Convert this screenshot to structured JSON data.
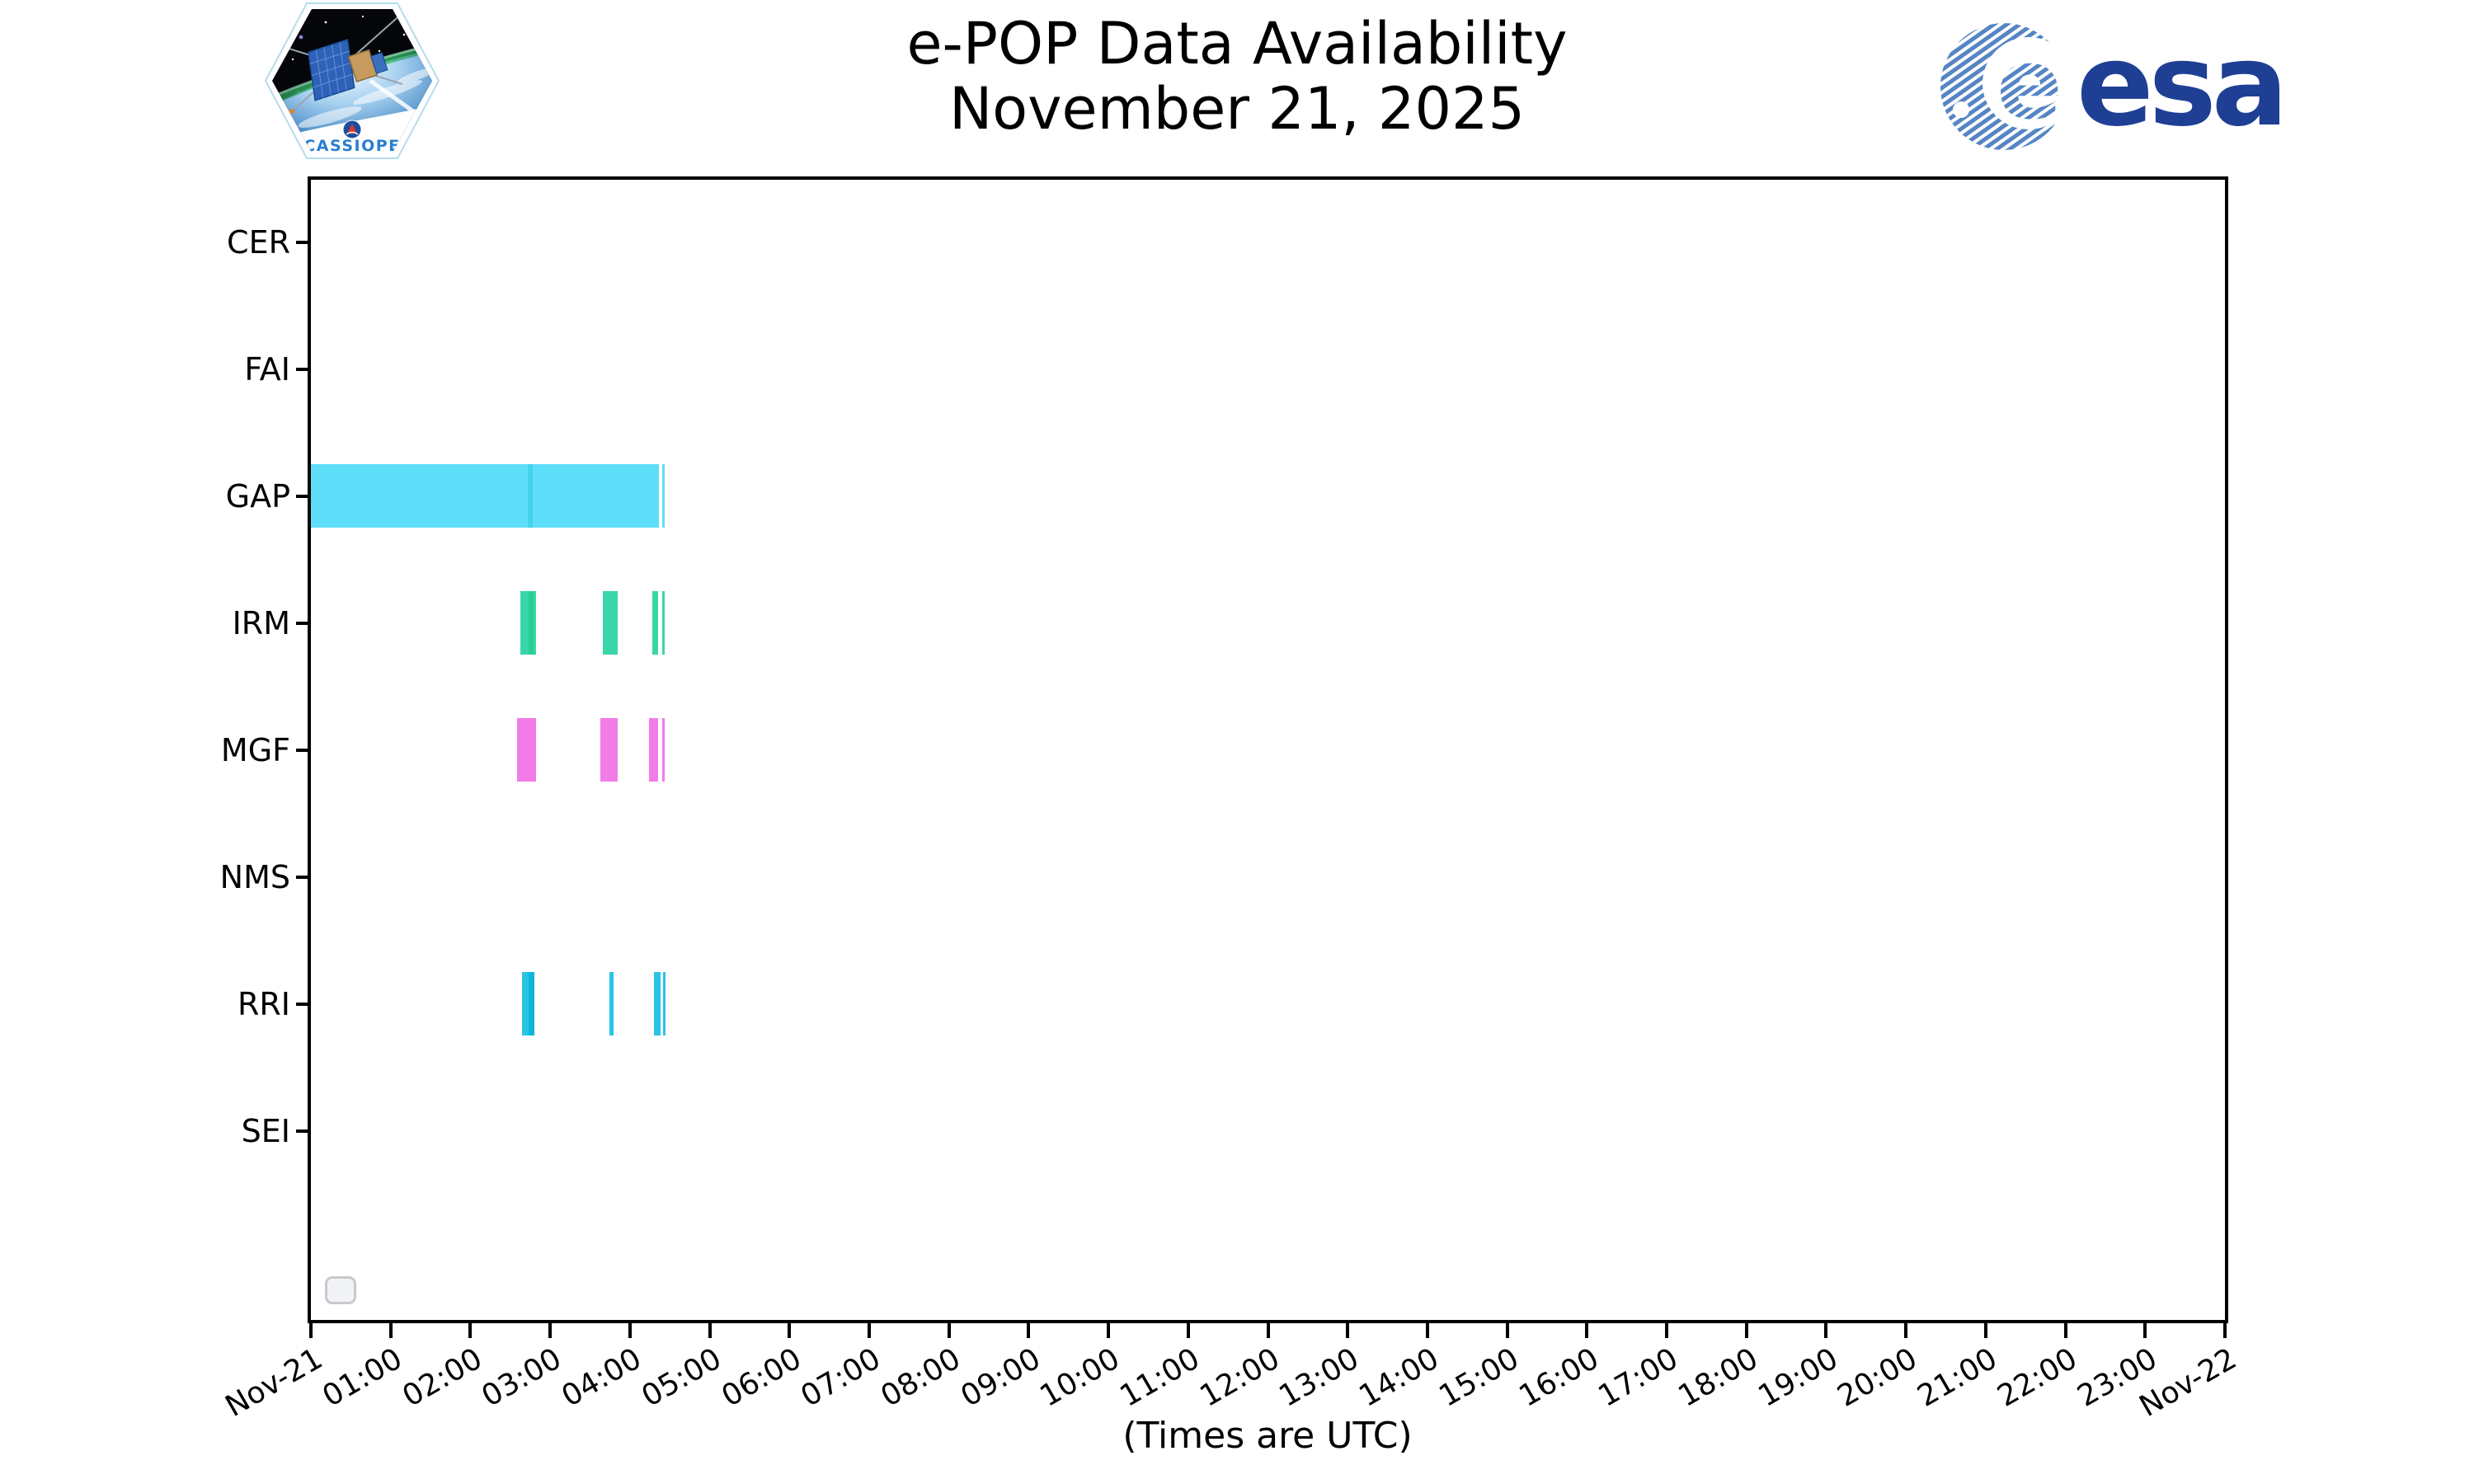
{
  "figure": {
    "cassiope_patch_text": "CASSIOPE",
    "esa_wordmark": "esa"
  },
  "chart_data": {
    "type": "availability-gantt",
    "title": "e-POP Data Availability",
    "subtitle": "November 21, 2025",
    "xlabel": "(Times are UTC)",
    "x_axis": {
      "start": "Nov-21 00:00 UTC",
      "end": "Nov-22 00:00 UTC",
      "hours_span": 24,
      "tick_interval_hours": 1,
      "tick_labels": [
        "Nov-21",
        "01:00",
        "02:00",
        "03:00",
        "04:00",
        "05:00",
        "06:00",
        "07:00",
        "08:00",
        "09:00",
        "10:00",
        "11:00",
        "12:00",
        "13:00",
        "14:00",
        "15:00",
        "16:00",
        "17:00",
        "18:00",
        "19:00",
        "20:00",
        "21:00",
        "22:00",
        "23:00",
        "Nov-22"
      ]
    },
    "instruments": [
      "CER",
      "FAI",
      "GAP",
      "IRM",
      "MGF",
      "NMS",
      "RRI",
      "SEI"
    ],
    "series": [
      {
        "instrument": "CER",
        "segments": []
      },
      {
        "instrument": "FAI",
        "segments": []
      },
      {
        "instrument": "GAP",
        "color": "#5edef8",
        "overlap_color": "#43d3ef",
        "segments": [
          {
            "start": "00:00",
            "end": "04:22",
            "start_h": 0.0,
            "end_h": 4.36
          },
          {
            "start": "02:43",
            "end": "02:47",
            "start_h": 2.72,
            "end_h": 2.78,
            "overlap": true
          },
          {
            "start": "04:25",
            "end": "04:26",
            "start_h": 4.41,
            "end_h": 4.44
          }
        ]
      },
      {
        "instrument": "IRM",
        "color": "#3bd6a7",
        "overlap_color": "#27ce99",
        "segments": [
          {
            "start": "02:38",
            "end": "02:49",
            "start_h": 2.63,
            "end_h": 2.82
          },
          {
            "start": "02:44",
            "end": "02:47",
            "start_h": 2.73,
            "end_h": 2.79,
            "overlap": true
          },
          {
            "start": "03:40",
            "end": "03:51",
            "start_h": 3.66,
            "end_h": 3.85
          },
          {
            "start": "04:17",
            "end": "04:21",
            "start_h": 4.28,
            "end_h": 4.35
          },
          {
            "start": "04:25",
            "end": "04:26",
            "start_h": 4.41,
            "end_h": 4.43
          }
        ]
      },
      {
        "instrument": "MGF",
        "color": "#f27ce8",
        "segments": [
          {
            "start": "02:35",
            "end": "02:49",
            "start_h": 2.59,
            "end_h": 2.82
          },
          {
            "start": "03:38",
            "end": "03:51",
            "start_h": 3.63,
            "end_h": 3.85
          },
          {
            "start": "04:14",
            "end": "04:21",
            "start_h": 4.24,
            "end_h": 4.35
          },
          {
            "start": "04:25",
            "end": "04:26",
            "start_h": 4.41,
            "end_h": 4.43
          }
        ]
      },
      {
        "instrument": "NMS",
        "segments": []
      },
      {
        "instrument": "RRI",
        "color": "#29c3e6",
        "overlap_color": "#0fb6dc",
        "segments": [
          {
            "start": "02:39",
            "end": "02:48",
            "start_h": 2.65,
            "end_h": 2.8
          },
          {
            "start": "02:44",
            "end": "02:48",
            "start_h": 2.73,
            "end_h": 2.8,
            "overlap": true
          },
          {
            "start": "03:44",
            "end": "03:47",
            "start_h": 3.74,
            "end_h": 3.79
          },
          {
            "start": "04:18",
            "end": "04:23",
            "start_h": 4.3,
            "end_h": 4.38
          },
          {
            "start": "04:25",
            "end": "04:26",
            "start_h": 4.42,
            "end_h": 4.44
          }
        ]
      },
      {
        "instrument": "SEI",
        "segments": []
      }
    ],
    "legend": {
      "visible": true,
      "entries": []
    }
  }
}
